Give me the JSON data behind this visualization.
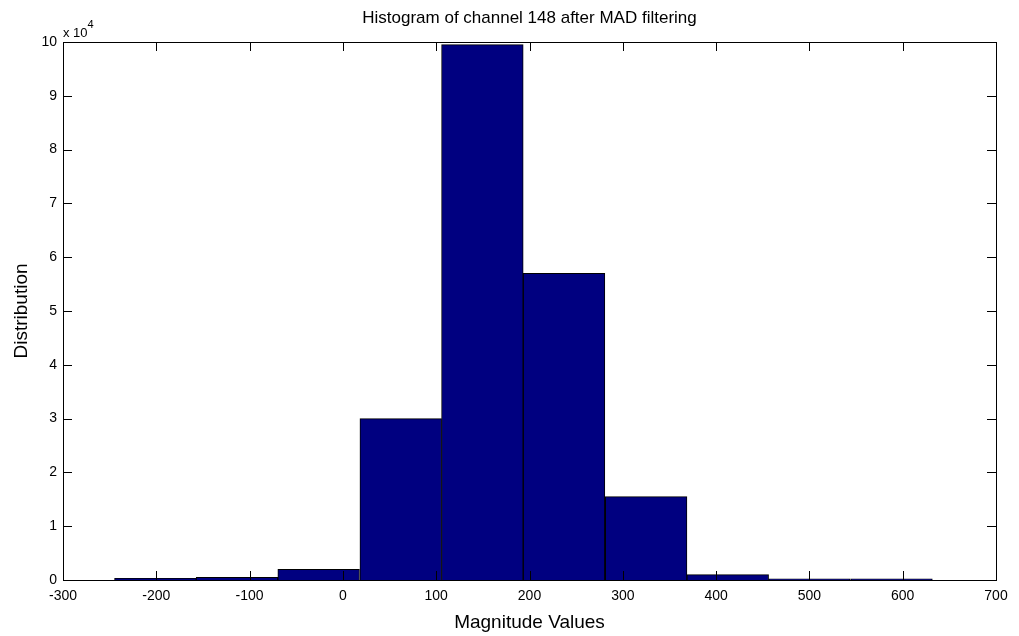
{
  "chart_data": {
    "type": "histogram",
    "title": "Histogram of channel 148 after MAD filtering",
    "xlabel": "Magnitude Values",
    "ylabel": "Distribution",
    "annotations": [
      "x 10$^{4}$"
    ],
    "bins": [
      -245,
      -157,
      -70,
      18,
      106,
      193,
      281,
      369,
      456,
      544,
      632
    ],
    "values": [
      0.03,
      0.05,
      0.2,
      3.0,
      9.95,
      5.7,
      1.55,
      0.1,
      0.02,
      0.02
    ],
    "color": "#000080",
    "xlim": [
      -300,
      700
    ],
    "xticks": [
      -300,
      -200,
      -100,
      0,
      100,
      200,
      300,
      400,
      500,
      600,
      700
    ],
    "ylim": [
      0,
      10
    ],
    "yticks": [
      0,
      1,
      2,
      3,
      4,
      5,
      6,
      7,
      8,
      9,
      10
    ],
    "grid": false,
    "legend": false
  }
}
